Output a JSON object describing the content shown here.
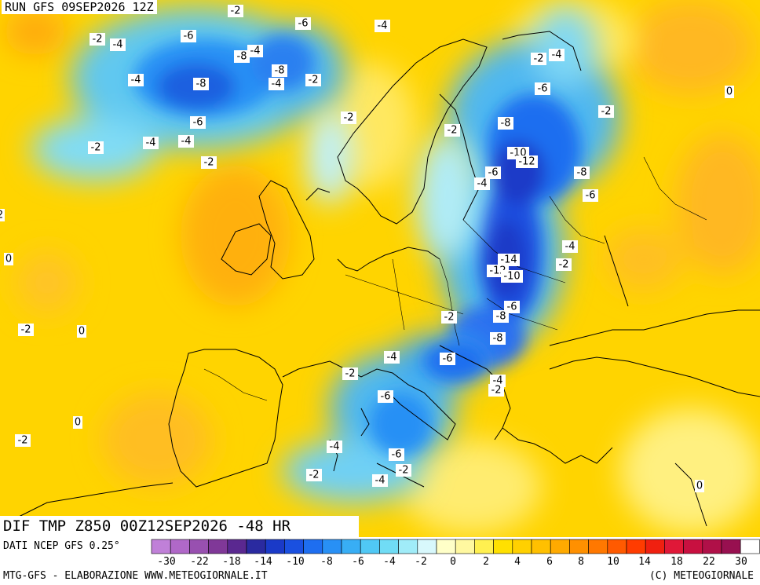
{
  "header": {
    "run_title": "RUN GFS 09SEP2026 12Z"
  },
  "map": {
    "title": "DIF TMP Z850 00Z12SEP2026 -48 HR",
    "contour_labels": [
      {
        "text": "-2"
      },
      {
        "text": "-2"
      },
      {
        "text": "-4"
      },
      {
        "text": "-6"
      },
      {
        "text": "-6"
      },
      {
        "text": "-4"
      },
      {
        "text": "-8"
      },
      {
        "text": "-4"
      },
      {
        "text": "-8"
      },
      {
        "text": "-4"
      },
      {
        "text": "-2"
      },
      {
        "text": "-4"
      },
      {
        "text": "-8"
      },
      {
        "text": "-6"
      },
      {
        "text": "-2"
      },
      {
        "text": "-4"
      },
      {
        "text": "-4"
      },
      {
        "text": "-2"
      },
      {
        "text": "-2"
      },
      {
        "text": "-2"
      },
      {
        "text": "-2"
      },
      {
        "text": "-4"
      },
      {
        "text": "-6"
      },
      {
        "text": "0"
      },
      {
        "text": "-2"
      },
      {
        "text": "-8"
      },
      {
        "text": "-10"
      },
      {
        "text": "-12"
      },
      {
        "text": "-8"
      },
      {
        "text": "-6"
      },
      {
        "text": "-6"
      },
      {
        "text": "-4"
      },
      {
        "text": "-4"
      },
      {
        "text": "-2"
      },
      {
        "text": "-14"
      },
      {
        "text": "-12"
      },
      {
        "text": "-10"
      },
      {
        "text": "-6"
      },
      {
        "text": "-8"
      },
      {
        "text": "-2"
      },
      {
        "text": "-8"
      },
      {
        "text": "-4"
      },
      {
        "text": "-6"
      },
      {
        "text": "-2"
      },
      {
        "text": "-4"
      },
      {
        "text": "-2"
      },
      {
        "text": "-6"
      },
      {
        "text": "-4"
      },
      {
        "text": "-6"
      },
      {
        "text": "-2"
      },
      {
        "text": "-4"
      },
      {
        "text": "-2"
      },
      {
        "text": "0"
      },
      {
        "text": "-2"
      },
      {
        "text": "0"
      },
      {
        "text": "0"
      },
      {
        "text": "-2"
      },
      {
        "text": "0"
      },
      {
        "text": "2"
      }
    ]
  },
  "legend": {
    "source": "DATI NCEP GFS 0.25°",
    "tick_labels": [
      "-30",
      "-22",
      "-18",
      "-14",
      "-10",
      "-8",
      "-6",
      "-4",
      "-2",
      "0",
      "2",
      "4",
      "6",
      "8",
      "10",
      "14",
      "18",
      "22",
      "30"
    ],
    "colors": [
      "#c080d8",
      "#b068c8",
      "#9850b0",
      "#803898",
      "#5a2890",
      "#2a2aa0",
      "#1a3ac8",
      "#1a50e0",
      "#1e6ef0",
      "#2890f5",
      "#38aef5",
      "#50c8f5",
      "#70dcf5",
      "#a0ecf8",
      "#d8f8fc",
      "#ffffc8",
      "#fff8a0",
      "#fff050",
      "#ffe000",
      "#ffd000",
      "#ffc000",
      "#ffaa00",
      "#ff9000",
      "#ff7800",
      "#ff5a00",
      "#ff3c00",
      "#f02010",
      "#e01838",
      "#c81040",
      "#b01048",
      "#981050",
      "#ffffff"
    ]
  },
  "footer": {
    "left": "MTG-GFS - ELABORAZIONE WWW.METEOGIORNALE.IT",
    "right": "(C) METEOGIORNALE"
  }
}
